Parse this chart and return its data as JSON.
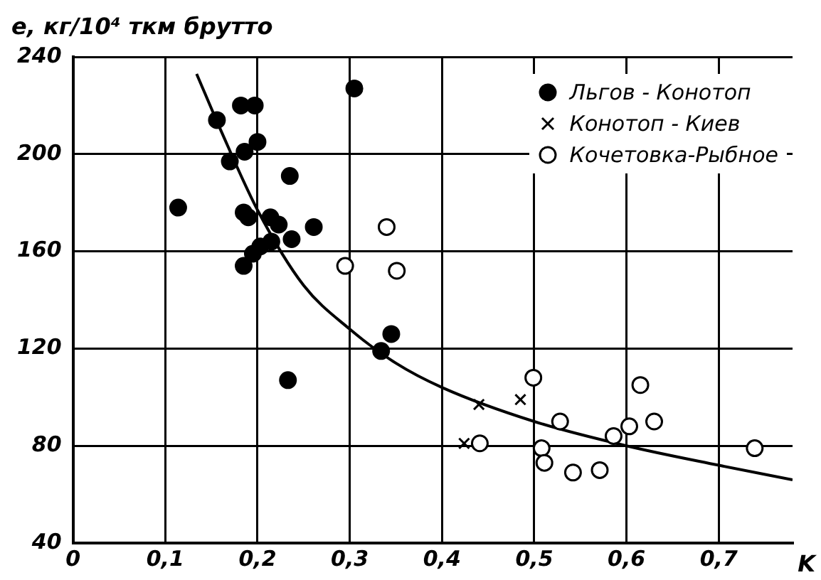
{
  "chart_data": {
    "type": "scatter",
    "ylabel": "e, кг/10⁴ ткм брутто",
    "xlabel": "K",
    "xlim": [
      0,
      0.78
    ],
    "ylim": [
      40,
      240
    ],
    "xticks": [
      {
        "value": 0,
        "label": "0"
      },
      {
        "value": 0.1,
        "label": "0,1"
      },
      {
        "value": 0.2,
        "label": "0,2"
      },
      {
        "value": 0.3,
        "label": "0,3"
      },
      {
        "value": 0.4,
        "label": "0,4"
      },
      {
        "value": 0.5,
        "label": "0,5"
      },
      {
        "value": 0.6,
        "label": "0,6"
      },
      {
        "value": 0.7,
        "label": "0,7"
      }
    ],
    "yticks": [
      40,
      80,
      120,
      160,
      200,
      240
    ],
    "grid": true,
    "legend": "top right",
    "series": [
      {
        "name": "Льгов - Конотоп",
        "color": "#000000",
        "marker": "circle",
        "x": [
          0.114,
          0.156,
          0.182,
          0.197,
          0.2,
          0.186,
          0.17,
          0.235,
          0.185,
          0.19,
          0.214,
          0.223,
          0.261,
          0.237,
          0.215,
          0.203,
          0.195,
          0.185,
          0.305,
          0.233,
          0.334,
          0.345
        ],
        "values": [
          178,
          214,
          220,
          220,
          205,
          201,
          197,
          191,
          176,
          174,
          174,
          171,
          170,
          165,
          164,
          162,
          159,
          154,
          227,
          107,
          119,
          126
        ]
      },
      {
        "name": "Конотоп - Киев",
        "color": "#000000",
        "marker": "cross",
        "x": [
          0.44,
          0.485,
          0.424
        ],
        "values": [
          97,
          99,
          81
        ]
      },
      {
        "name": "Кочетовка-Рыбное",
        "color": "#ffffff",
        "marker": "circle",
        "x": [
          0.34,
          0.351,
          0.295,
          0.499,
          0.615,
          0.528,
          0.63,
          0.603,
          0.586,
          0.441,
          0.508,
          0.511,
          0.542,
          0.571,
          0.739
        ],
        "values": [
          170,
          152,
          154,
          108,
          105,
          90,
          90,
          88,
          84,
          81,
          79,
          73,
          69,
          70,
          79
        ]
      },
      {
        "type": "line",
        "color": "#000000",
        "marker": "none",
        "x": [
          0.134,
          0.16,
          0.2,
          0.25,
          0.3,
          0.35,
          0.4,
          0.5,
          0.6,
          0.7,
          0.78
        ],
        "values": [
          233,
          210,
          177,
          146,
          128,
          114,
          104,
          90,
          80,
          72,
          66
        ]
      }
    ]
  }
}
